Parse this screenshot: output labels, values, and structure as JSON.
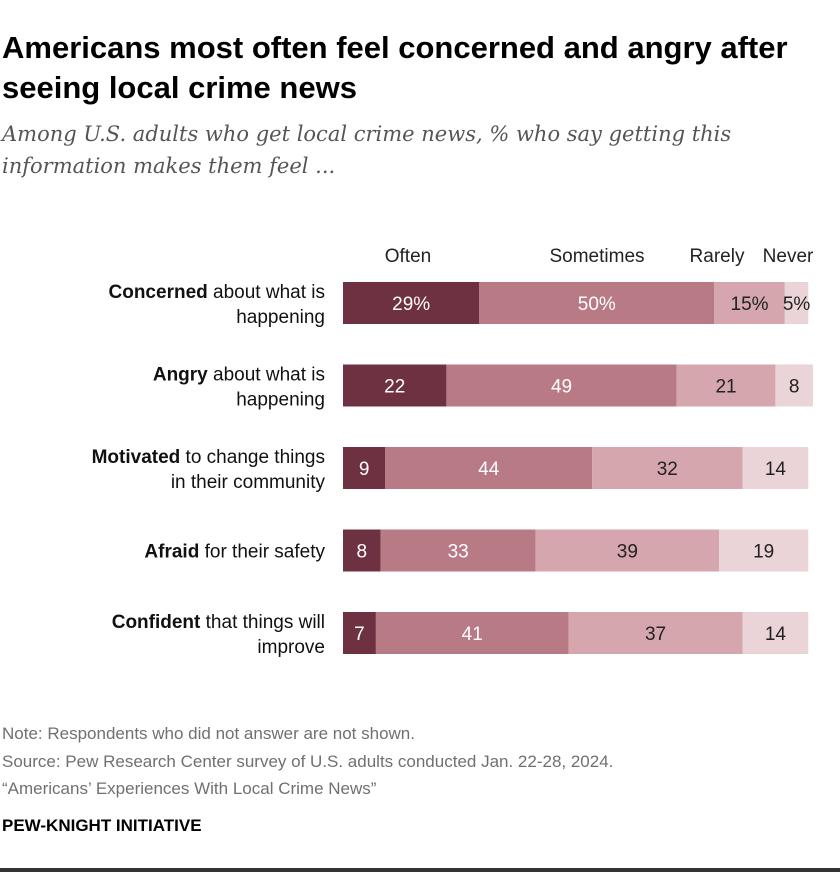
{
  "title": "Americans most often feel concerned and angry after seeing local crime news",
  "subtitle": "Among U.S. adults who get local crime news, % who say getting this information makes them feel ...",
  "chart_data": {
    "type": "bar",
    "orientation": "horizontal-stacked-100",
    "series_names": [
      "Often",
      "Sometimes",
      "Rarely",
      "Never"
    ],
    "series_colors": [
      "#6e3141",
      "#b87a85",
      "#d5a6ad",
      "#ead4d8"
    ],
    "label_colors": [
      "#ffffff",
      "#ffffff",
      "#222222",
      "#222222"
    ],
    "categories": [
      {
        "bold": "Concerned",
        "rest": "about what is",
        "line2": "happening"
      },
      {
        "bold": "Angry",
        "rest": "about what is",
        "line2": "happening"
      },
      {
        "bold": "Motivated",
        "rest": "to change things",
        "line2": "in their community"
      },
      {
        "bold": "Afraid",
        "rest": "for their safety",
        "line2": ""
      },
      {
        "bold": "Confident",
        "rest": "that things will",
        "line2": "improve"
      }
    ],
    "series": [
      {
        "name": "Often",
        "values": [
          29,
          22,
          9,
          8,
          7
        ]
      },
      {
        "name": "Sometimes",
        "values": [
          50,
          49,
          44,
          33,
          41
        ]
      },
      {
        "name": "Rarely",
        "values": [
          15,
          21,
          32,
          39,
          37
        ]
      },
      {
        "name": "Never",
        "values": [
          5,
          8,
          14,
          19,
          14
        ]
      }
    ],
    "value_labels": [
      [
        "29%",
        "50%",
        "15%",
        "5%"
      ],
      [
        "22",
        "49",
        "21",
        "8"
      ],
      [
        "9",
        "44",
        "32",
        "14"
      ],
      [
        "8",
        "33",
        "39",
        "19"
      ],
      [
        "7",
        "41",
        "37",
        "14"
      ]
    ]
  },
  "notes": {
    "note": "Note: Respondents who did not answer are not shown.",
    "source": "Source: Pew Research Center survey of U.S. adults conducted Jan. 22-28, 2024.",
    "report": "“Americans’ Experiences With Local Crime News”"
  },
  "brand": "PEW-KNIGHT INITIATIVE"
}
